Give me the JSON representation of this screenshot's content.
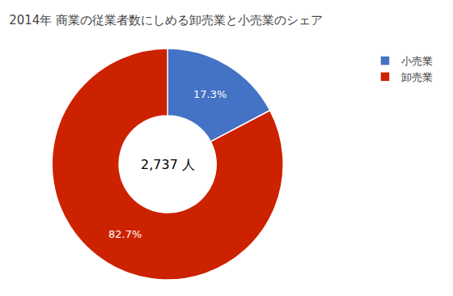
{
  "chart_data": {
    "type": "donut",
    "title": "2014年 商業の従業者数にしめる卸売業と小売業のシェア",
    "categories": [
      "小売業",
      "卸売業"
    ],
    "values": [
      17.3,
      82.7
    ],
    "value_labels": [
      "17.3%",
      "82.7%"
    ],
    "colors": [
      "#4472C4",
      "#CC2200"
    ],
    "annotations": [
      "2,737 人"
    ],
    "data_labels": true,
    "legend": "upper right"
  }
}
